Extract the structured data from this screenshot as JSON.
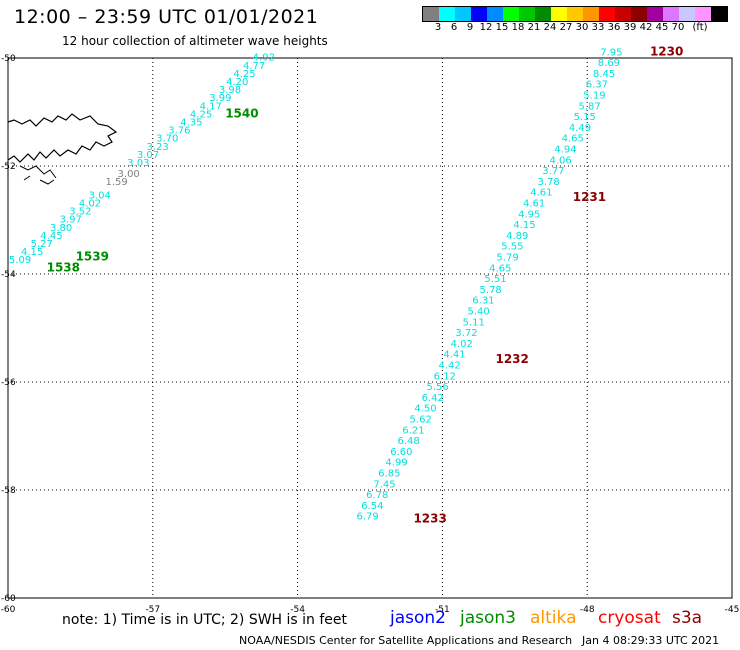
{
  "header": {
    "title": "12:00 – 23:59 UTC 01/01/2021",
    "subtitle": "12 hour collection of altimeter wave heights"
  },
  "colorbar": {
    "colors": [
      "#808080",
      "#00ffff",
      "#00c8ff",
      "#0000ff",
      "#008cff",
      "#00ff00",
      "#00c800",
      "#008c00",
      "#ffff00",
      "#ffc800",
      "#ff9600",
      "#ff0000",
      "#c80000",
      "#8c0000",
      "#a000a0",
      "#dc78ff",
      "#c8c8ff",
      "#ff96ff",
      "#000000"
    ],
    "labels": [
      "3",
      "6",
      "9",
      "12",
      "15",
      "18",
      "21",
      "24",
      "27",
      "30",
      "33",
      "36",
      "39",
      "42",
      "45",
      "70",
      "(ft)"
    ]
  },
  "map": {
    "lat_labels": [
      "-50",
      "-52",
      "-54",
      "-56",
      "-58",
      "-60"
    ],
    "lon_labels": [
      "-60",
      "-57",
      "-54",
      "-51",
      "-48",
      "-45"
    ],
    "lat_values": [
      -50,
      -52,
      -54,
      -56,
      -58,
      -60
    ],
    "lon_values": [
      -60,
      -57,
      -54,
      -51,
      -48,
      -45
    ]
  },
  "tracks": [
    {
      "name": "track-1540",
      "color": "#00e0e0",
      "time_label": "1540",
      "time_color": "#008c00",
      "time_lon": -55.5,
      "time_lat": -51.1,
      "points": [
        {
          "lon": -54.7,
          "lat": -50.05,
          "v": "4.92"
        },
        {
          "lon": -54.9,
          "lat": -50.2,
          "v": "4.77"
        },
        {
          "lon": -55.1,
          "lat": -50.35,
          "v": "4.25"
        },
        {
          "lon": -55.25,
          "lat": -50.5,
          "v": "4.20"
        },
        {
          "lon": -55.4,
          "lat": -50.65,
          "v": "3.98"
        },
        {
          "lon": -55.6,
          "lat": -50.8,
          "v": "3.99"
        },
        {
          "lon": -55.8,
          "lat": -50.95,
          "v": "4.17"
        },
        {
          "lon": -56.0,
          "lat": -51.1,
          "v": "4.25"
        },
        {
          "lon": -56.2,
          "lat": -51.25,
          "v": "4.35"
        },
        {
          "lon": -56.45,
          "lat": -51.4,
          "v": "3.76"
        },
        {
          "lon": -56.7,
          "lat": -51.55,
          "v": "3.70"
        },
        {
          "lon": -56.9,
          "lat": -51.7,
          "v": "3.23"
        },
        {
          "lon": -57.1,
          "lat": -51.85,
          "v": "3.07"
        },
        {
          "lon": -57.3,
          "lat": -52.0,
          "v": "3.03"
        }
      ]
    },
    {
      "name": "track-grey",
      "color": "#808080",
      "time_label": "",
      "time_color": "#008c00",
      "time_lon": 0,
      "time_lat": 0,
      "points": [
        {
          "lon": -57.5,
          "lat": -52.2,
          "v": "3.00"
        },
        {
          "lon": -57.75,
          "lat": -52.35,
          "v": "1.59"
        }
      ]
    },
    {
      "name": "track-1539",
      "color": "#00e0e0",
      "time_label": "1539",
      "time_color": "#008c00",
      "time_lon": -58.6,
      "time_lat": -53.75,
      "points": [
        {
          "lon": -58.1,
          "lat": -52.6,
          "v": "3.04"
        },
        {
          "lon": -58.3,
          "lat": -52.75,
          "v": "4.02"
        },
        {
          "lon": -58.5,
          "lat": -52.9,
          "v": "3.52"
        },
        {
          "lon": -58.7,
          "lat": -53.05,
          "v": "3.97"
        },
        {
          "lon": -58.9,
          "lat": -53.2,
          "v": "3.80"
        },
        {
          "lon": -59.1,
          "lat": -53.35,
          "v": "4.45"
        },
        {
          "lon": -59.3,
          "lat": -53.5,
          "v": "5.27"
        },
        {
          "lon": -59.5,
          "lat": -53.65,
          "v": "4.15"
        },
        {
          "lon": -59.75,
          "lat": -53.8,
          "v": "5.09"
        }
      ]
    },
    {
      "name": "track-1538",
      "color": "#008c00",
      "time_label": "1538",
      "time_color": "#008c00",
      "time_lon": -59.2,
      "time_lat": -53.95,
      "points": []
    },
    {
      "name": "track-1230-1233",
      "color": "#00e0e0",
      "time_label": "",
      "time_color": "#8c0000",
      "time_lon": 0,
      "time_lat": 0,
      "points": [
        {
          "lon": -47.5,
          "lat": -49.95,
          "v": "7.95"
        },
        {
          "lon": -47.55,
          "lat": -50.15,
          "v": "8.69"
        },
        {
          "lon": -47.65,
          "lat": -50.35,
          "v": "8.45"
        },
        {
          "lon": -47.8,
          "lat": -50.55,
          "v": "6.37"
        },
        {
          "lon": -47.85,
          "lat": -50.75,
          "v": "5.19"
        },
        {
          "lon": -47.95,
          "lat": -50.95,
          "v": "5.87"
        },
        {
          "lon": -48.05,
          "lat": -51.15,
          "v": "5.15"
        },
        {
          "lon": -48.15,
          "lat": -51.35,
          "v": "4.49"
        },
        {
          "lon": -48.3,
          "lat": -51.55,
          "v": "4.65"
        },
        {
          "lon": -48.45,
          "lat": -51.75,
          "v": "4.94"
        },
        {
          "lon": -48.55,
          "lat": -51.95,
          "v": "4.06"
        },
        {
          "lon": -48.7,
          "lat": -52.15,
          "v": "3.77"
        },
        {
          "lon": -48.8,
          "lat": -52.35,
          "v": "3.78"
        },
        {
          "lon": -48.95,
          "lat": -52.55,
          "v": "4.61"
        },
        {
          "lon": -49.1,
          "lat": -52.75,
          "v": "4.61"
        },
        {
          "lon": -49.2,
          "lat": -52.95,
          "v": "4.95"
        },
        {
          "lon": -49.3,
          "lat": -53.15,
          "v": "4.15"
        },
        {
          "lon": -49.45,
          "lat": -53.35,
          "v": "4.89"
        },
        {
          "lon": -49.55,
          "lat": -53.55,
          "v": "5.55"
        },
        {
          "lon": -49.65,
          "lat": -53.75,
          "v": "5.79"
        },
        {
          "lon": -49.8,
          "lat": -53.95,
          "v": "4.65"
        },
        {
          "lon": -49.9,
          "lat": -54.15,
          "v": "5.51"
        },
        {
          "lon": -50.0,
          "lat": -54.35,
          "v": "5.78"
        },
        {
          "lon": -50.15,
          "lat": -54.55,
          "v": "6.31"
        },
        {
          "lon": -50.25,
          "lat": -54.75,
          "v": "5.40"
        },
        {
          "lon": -50.35,
          "lat": -54.95,
          "v": "5.11"
        },
        {
          "lon": -50.5,
          "lat": -55.15,
          "v": "3.72"
        },
        {
          "lon": -50.6,
          "lat": -55.35,
          "v": "4.02"
        },
        {
          "lon": -50.75,
          "lat": -55.55,
          "v": "4.41"
        },
        {
          "lon": -50.85,
          "lat": -55.75,
          "v": "4.42"
        },
        {
          "lon": -50.95,
          "lat": -55.95,
          "v": "6.12"
        },
        {
          "lon": -51.1,
          "lat": -56.15,
          "v": "5.56"
        },
        {
          "lon": -51.2,
          "lat": -56.35,
          "v": "6.42"
        },
        {
          "lon": -51.35,
          "lat": -56.55,
          "v": "4.50"
        },
        {
          "lon": -51.45,
          "lat": -56.75,
          "v": "5.62"
        },
        {
          "lon": -51.6,
          "lat": -56.95,
          "v": "6.21"
        },
        {
          "lon": -51.7,
          "lat": -57.15,
          "v": "6.48"
        },
        {
          "lon": -51.85,
          "lat": -57.35,
          "v": "6.60"
        },
        {
          "lon": -51.95,
          "lat": -57.55,
          "v": "4.99"
        },
        {
          "lon": -52.1,
          "lat": -57.75,
          "v": "6.85"
        },
        {
          "lon": -52.2,
          "lat": -57.95,
          "v": "7.45"
        },
        {
          "lon": -52.35,
          "lat": -58.15,
          "v": "6.78"
        },
        {
          "lon": -52.45,
          "lat": -58.35,
          "v": "6.54"
        },
        {
          "lon": -52.55,
          "lat": -58.55,
          "v": "6.79"
        }
      ]
    }
  ],
  "time_markers": [
    {
      "label": "1230",
      "color": "#8c0000",
      "lon": -46.7,
      "lat": -49.95
    },
    {
      "label": "1231",
      "color": "#8c0000",
      "lon": -48.3,
      "lat": -52.65
    },
    {
      "label": "1232",
      "color": "#8c0000",
      "lon": -49.9,
      "lat": -55.65
    },
    {
      "label": "1233",
      "color": "#8c0000",
      "lon": -51.6,
      "lat": -58.6
    }
  ],
  "footer": {
    "note": "note: 1) Time is in UTC; 2) SWH is in feet",
    "satellites": [
      {
        "label": "jason2",
        "color": "#0000ff"
      },
      {
        "label": "jason3",
        "color": "#008c00"
      },
      {
        "label": "altika",
        "color": "#ff9600"
      },
      {
        "label": "cryosat",
        "color": "#ff0000"
      },
      {
        "label": "s3a",
        "color": "#8c0000"
      }
    ],
    "credit": "NOAA/NESDIS Center for Satellite Applications and Research",
    "timestamp": "Jan  4 08:29:33 UTC 2021"
  }
}
